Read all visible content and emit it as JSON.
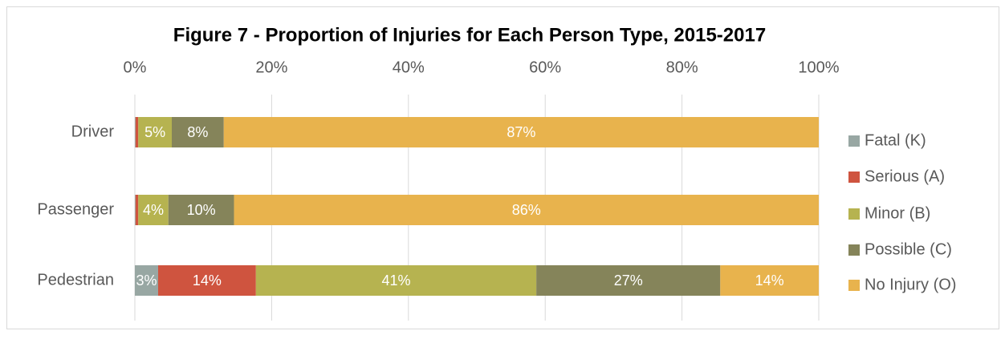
{
  "chart_data": {
    "type": "stacked_bar_horizontal",
    "title": "Figure 7 - Proportion of Injuries for Each Person Type, 2015-2017",
    "categories": [
      "Driver",
      "Passenger",
      "Pedestrian"
    ],
    "series": [
      {
        "name": "Fatal (K)",
        "color": "#98a7a3",
        "values": [
          0.1,
          0.1,
          3.4
        ],
        "value_labels": [
          null,
          null,
          "3%"
        ]
      },
      {
        "name": "Serious (A)",
        "color": "#cf543f",
        "values": [
          0.4,
          0.4,
          14.3
        ],
        "value_labels": [
          null,
          null,
          "14%"
        ]
      },
      {
        "name": "Minor (B)",
        "color": "#b6b350",
        "values": [
          4.9,
          4.4,
          41.0
        ],
        "value_labels": [
          "5%",
          "4%",
          "41%"
        ]
      },
      {
        "name": "Possible (C)",
        "color": "#85845a",
        "values": [
          7.6,
          9.6,
          26.9
        ],
        "value_labels": [
          "8%",
          "10%",
          "27%"
        ]
      },
      {
        "name": "No Injury (O)",
        "color": "#e8b34d",
        "values": [
          87.0,
          85.5,
          14.4
        ],
        "value_labels": [
          "87%",
          "86%",
          "14%"
        ]
      }
    ],
    "xlim": [
      0,
      100
    ],
    "xticks": [
      {
        "value": 0,
        "label": "0%"
      },
      {
        "value": 20,
        "label": "20%"
      },
      {
        "value": 40,
        "label": "40%"
      },
      {
        "value": 60,
        "label": "60%"
      },
      {
        "value": 80,
        "label": "80%"
      },
      {
        "value": 100,
        "label": "100%"
      }
    ],
    "grid": true,
    "legend_position": "right"
  }
}
